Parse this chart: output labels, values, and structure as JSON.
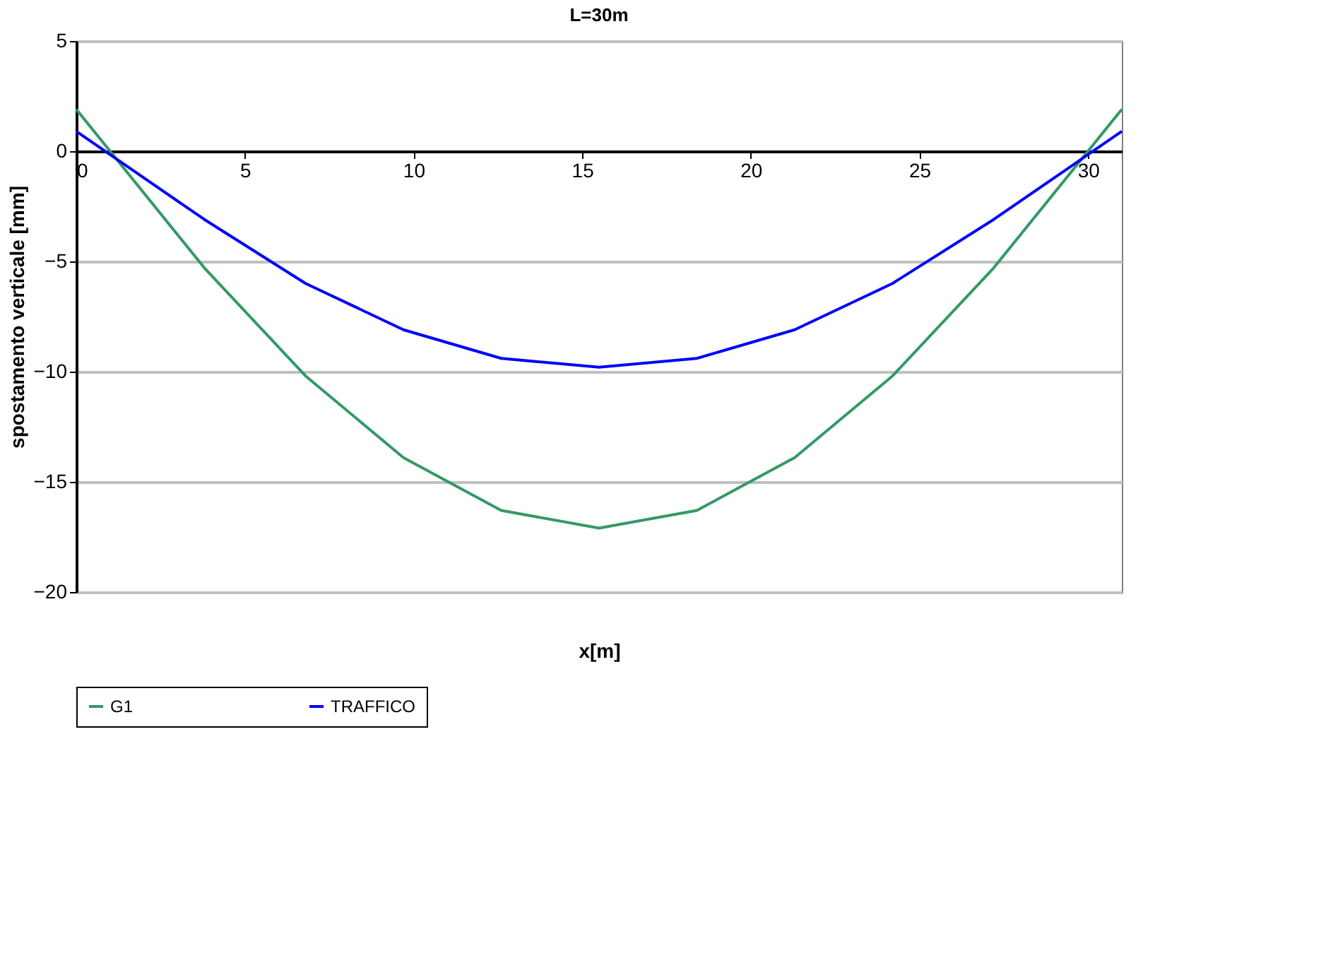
{
  "chart_data": {
    "type": "line",
    "title": "L=30m",
    "xlabel": "x[m]",
    "ylabel": "spostamento verticale [mm]",
    "x": [
      0,
      3.8,
      6.8,
      9.7,
      12.6,
      15.5,
      18.4,
      21.3,
      24.2,
      27.2,
      31
    ],
    "series": [
      {
        "name": "G1",
        "color": "#339966",
        "values": [
          1.9,
          -5.3,
          -10.2,
          -13.9,
          -16.3,
          -17.1,
          -16.3,
          -13.9,
          -10.2,
          -5.3,
          1.9
        ]
      },
      {
        "name": "TRAFFICO",
        "color": "#0000ff",
        "values": [
          0.9,
          -3.1,
          -6.0,
          -8.1,
          -9.4,
          -9.8,
          -9.4,
          -8.1,
          -6.0,
          -3.1,
          0.9
        ]
      }
    ],
    "xlim": [
      0,
      31
    ],
    "xticks": [
      0,
      5,
      10,
      15,
      20,
      25,
      30
    ],
    "ylim": [
      -20,
      5
    ],
    "yticks": [
      -20,
      -15,
      -10,
      -5,
      0,
      5
    ],
    "grid": "y",
    "legend": "bottom",
    "marker": "none",
    "line_style": "solid"
  }
}
